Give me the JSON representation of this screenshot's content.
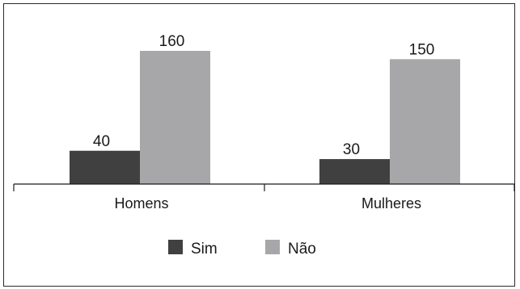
{
  "chart_data": {
    "type": "bar",
    "categories": [
      "Homens",
      "Mulheres"
    ],
    "series": [
      {
        "name": "Sim",
        "values": [
          40,
          30
        ],
        "color": "#404040"
      },
      {
        "name": "Não",
        "values": [
          160,
          150
        ],
        "color": "#a7a7a9"
      }
    ],
    "ylim": [
      0,
      160
    ],
    "grid": false,
    "legend_position": "bottom",
    "data_labels": true
  }
}
